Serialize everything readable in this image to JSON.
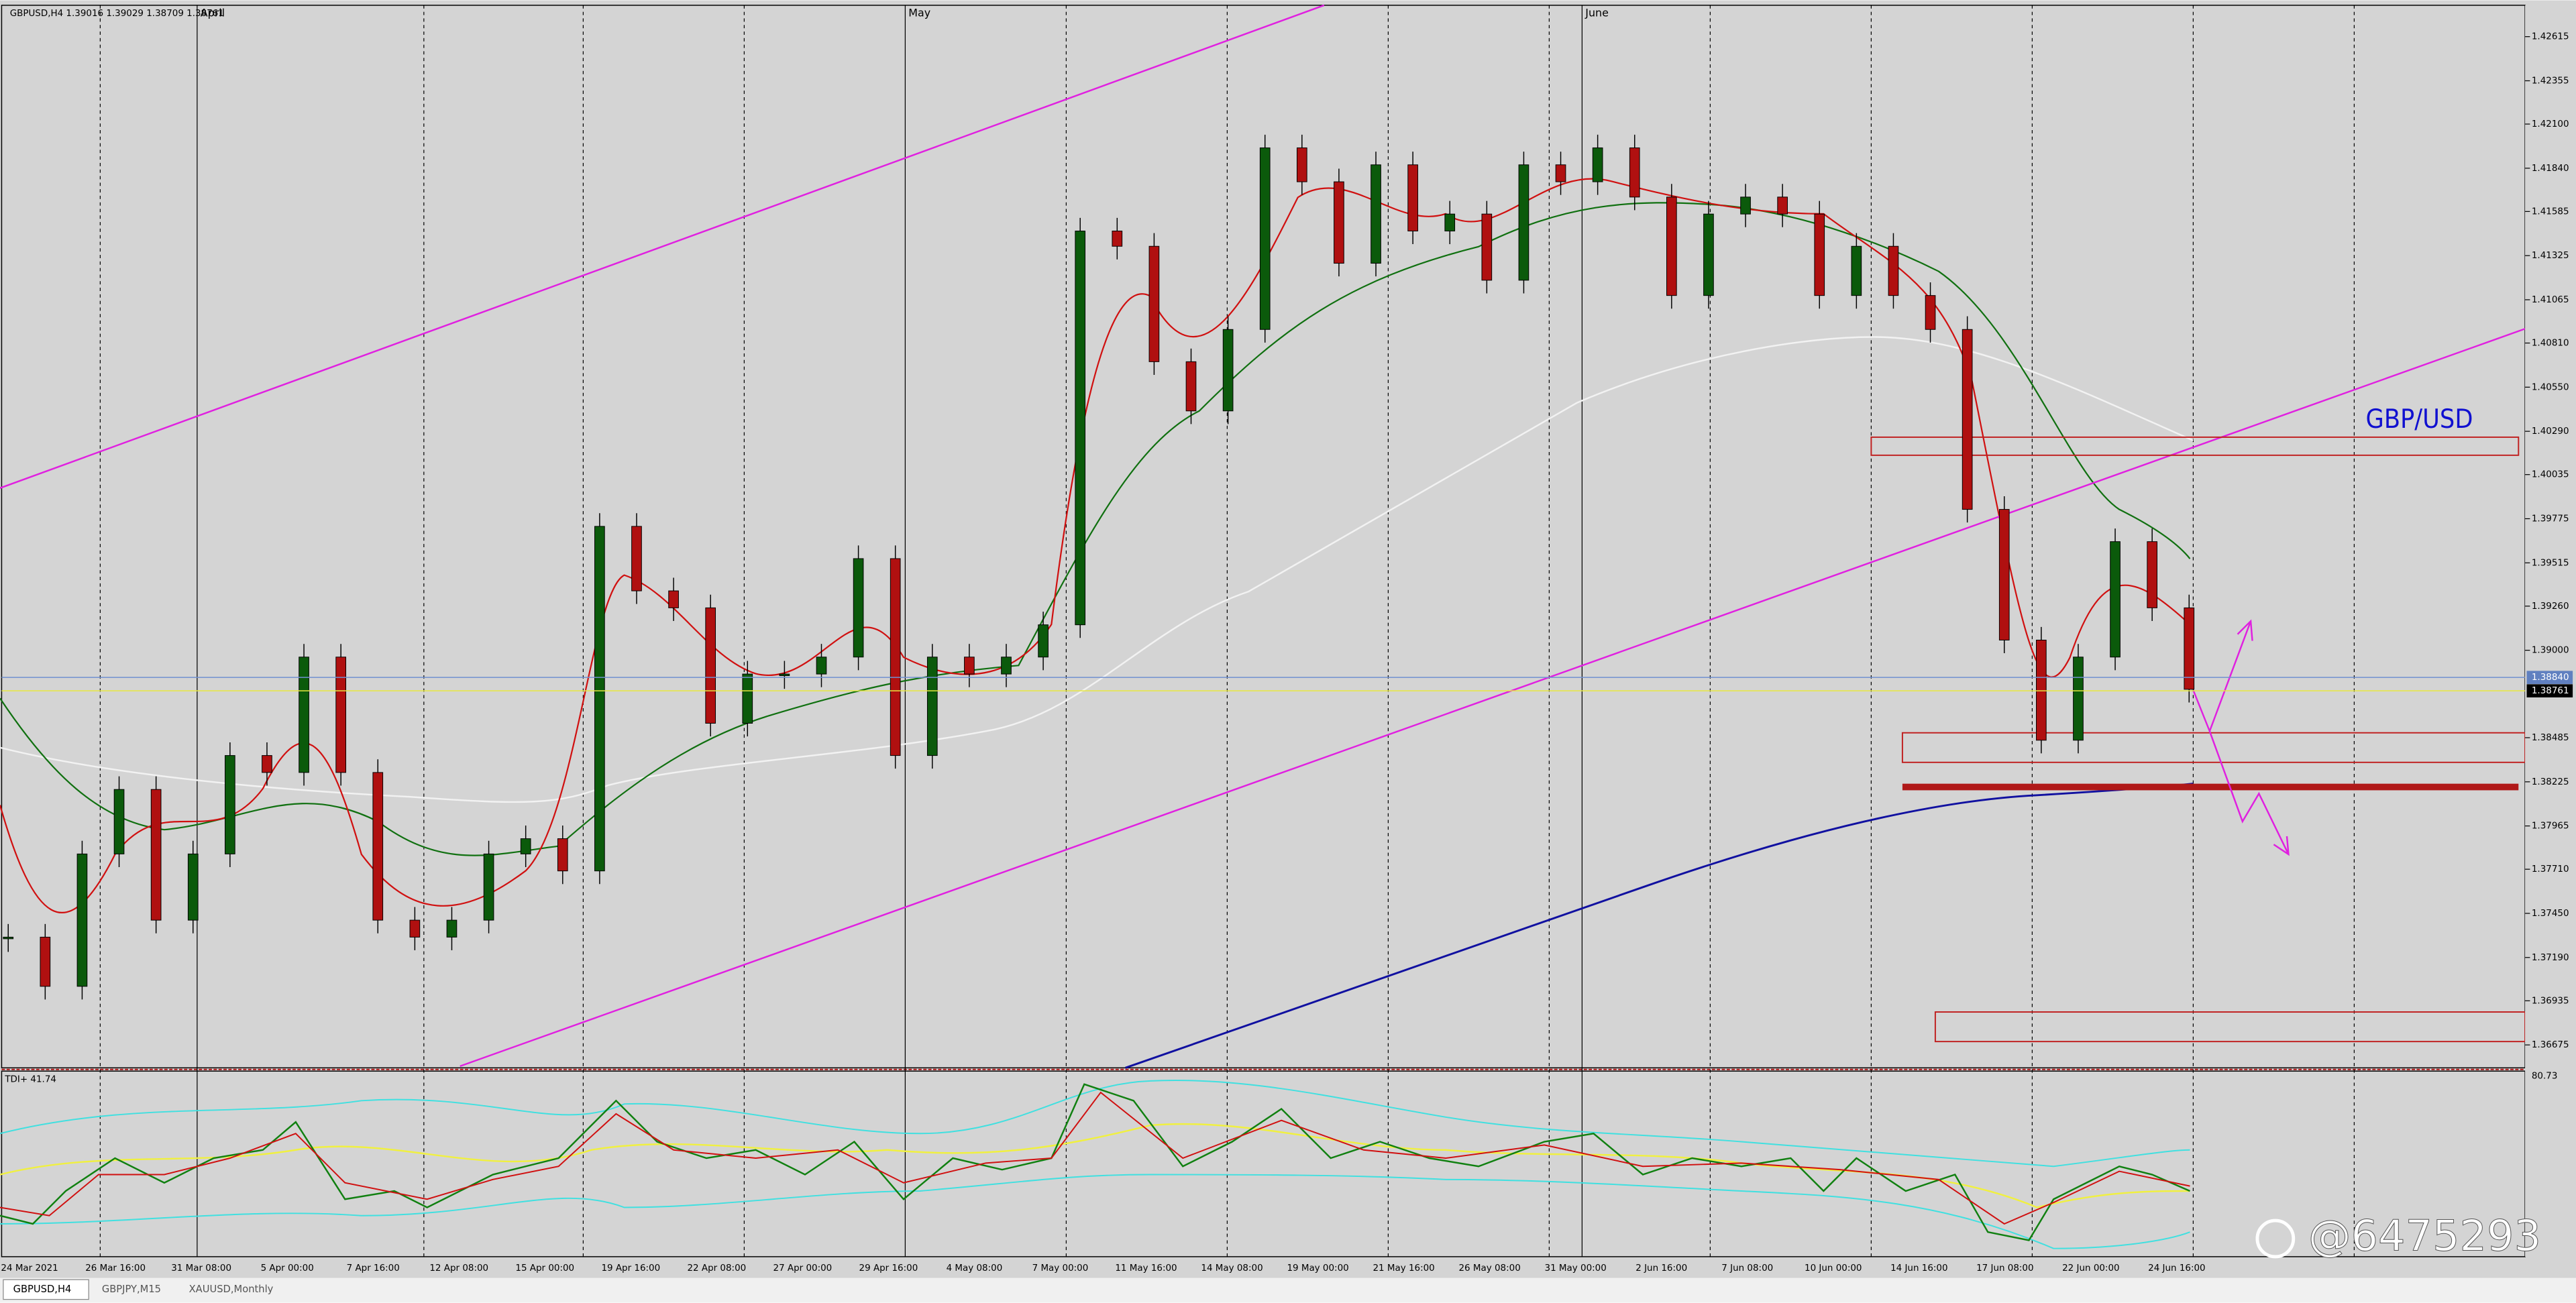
{
  "header": {
    "symbol_info": "GBPUSD,H4 1.39016 1.39029 1.38709 1.38761"
  },
  "months": [
    "April",
    "May",
    "June"
  ],
  "price_axis": {
    "ylim": [
      1.3654,
      1.428
    ],
    "yticks": [
      1.42615,
      1.42355,
      {
        "value": 1.421,
        "label": "1.42100"
      },
      {
        "value": 1.4184,
        "label": "1.41840"
      },
      1.41585,
      1.41325,
      1.41065,
      {
        "value": 1.4081,
        "label": "1.40810"
      },
      {
        "value": 1.4055,
        "label": "1.40550"
      },
      {
        "value": 1.4029,
        "label": "1.40290"
      },
      1.40035,
      1.39775,
      1.39515,
      {
        "value": 1.3926,
        "label": "1.39260"
      },
      {
        "value": 1.39,
        "label": "1.39000"
      },
      1.38485,
      1.38225,
      1.37965,
      {
        "value": 1.3771,
        "label": "1.37710"
      },
      {
        "value": 1.3745,
        "label": "1.37450"
      },
      {
        "value": 1.3719,
        "label": "1.37190"
      },
      1.36935,
      1.36675
    ]
  },
  "price_tags": [
    {
      "value": 1.3884,
      "label": "1.38840"
    },
    1.38761
  ],
  "dates": [
    "24 Mar 2021",
    "26 Mar 16:00",
    "31 Mar 08:00",
    "5 Apr 00:00",
    "7 Apr 16:00",
    "12 Apr 08:00",
    "15 Apr 00:00",
    "19 Apr 16:00",
    "22 Apr 08:00",
    "27 Apr 00:00",
    "29 Apr 16:00",
    "4 May 08:00",
    "7 May 00:00",
    "11 May 16:00",
    "14 May 08:00",
    "19 May 00:00",
    "21 May 16:00",
    "26 May 08:00",
    "31 May 00:00",
    "2 Jun 16:00",
    "7 Jun 08:00",
    "10 Jun 00:00",
    "14 Jun 16:00",
    "17 Jun 08:00",
    "22 Jun 00:00",
    "24 Jun 16:00"
  ],
  "candles": {
    "close": [
      1.3731,
      1.3702,
      1.378,
      1.3818,
      1.3741,
      1.378,
      1.3838,
      1.3828,
      1.3896,
      1.3828,
      1.3741,
      1.3731,
      1.3741,
      1.378,
      1.3789,
      1.377,
      1.3973,
      1.3935,
      1.3925,
      1.3857,
      1.3886,
      1.3886,
      1.3896,
      1.3954,
      1.3838,
      1.3896,
      1.3886,
      1.3896,
      1.3915,
      1.4147,
      1.4138,
      1.407,
      1.4041,
      1.4089,
      1.4196,
      1.4176,
      1.4128,
      1.4186,
      1.4147,
      1.4157,
      1.4118,
      1.4186,
      1.4176,
      1.4196,
      1.4167,
      1.4109,
      1.4157,
      1.4167,
      1.4157,
      1.4109,
      1.4138,
      1.4109,
      1.4089,
      1.3983,
      1.3906,
      1.3847,
      1.3896,
      1.3964,
      1.3925,
      1.3877
    ]
  },
  "indicator": {
    "label": "TDI+ 41.74",
    "level": "80.73"
  },
  "annotation": "GBP/USD",
  "watermark": "@6475293",
  "tabs": [
    "GBPUSD,H4",
    "GBPJPY,M15",
    "XAUUSD,Monthly"
  ]
}
